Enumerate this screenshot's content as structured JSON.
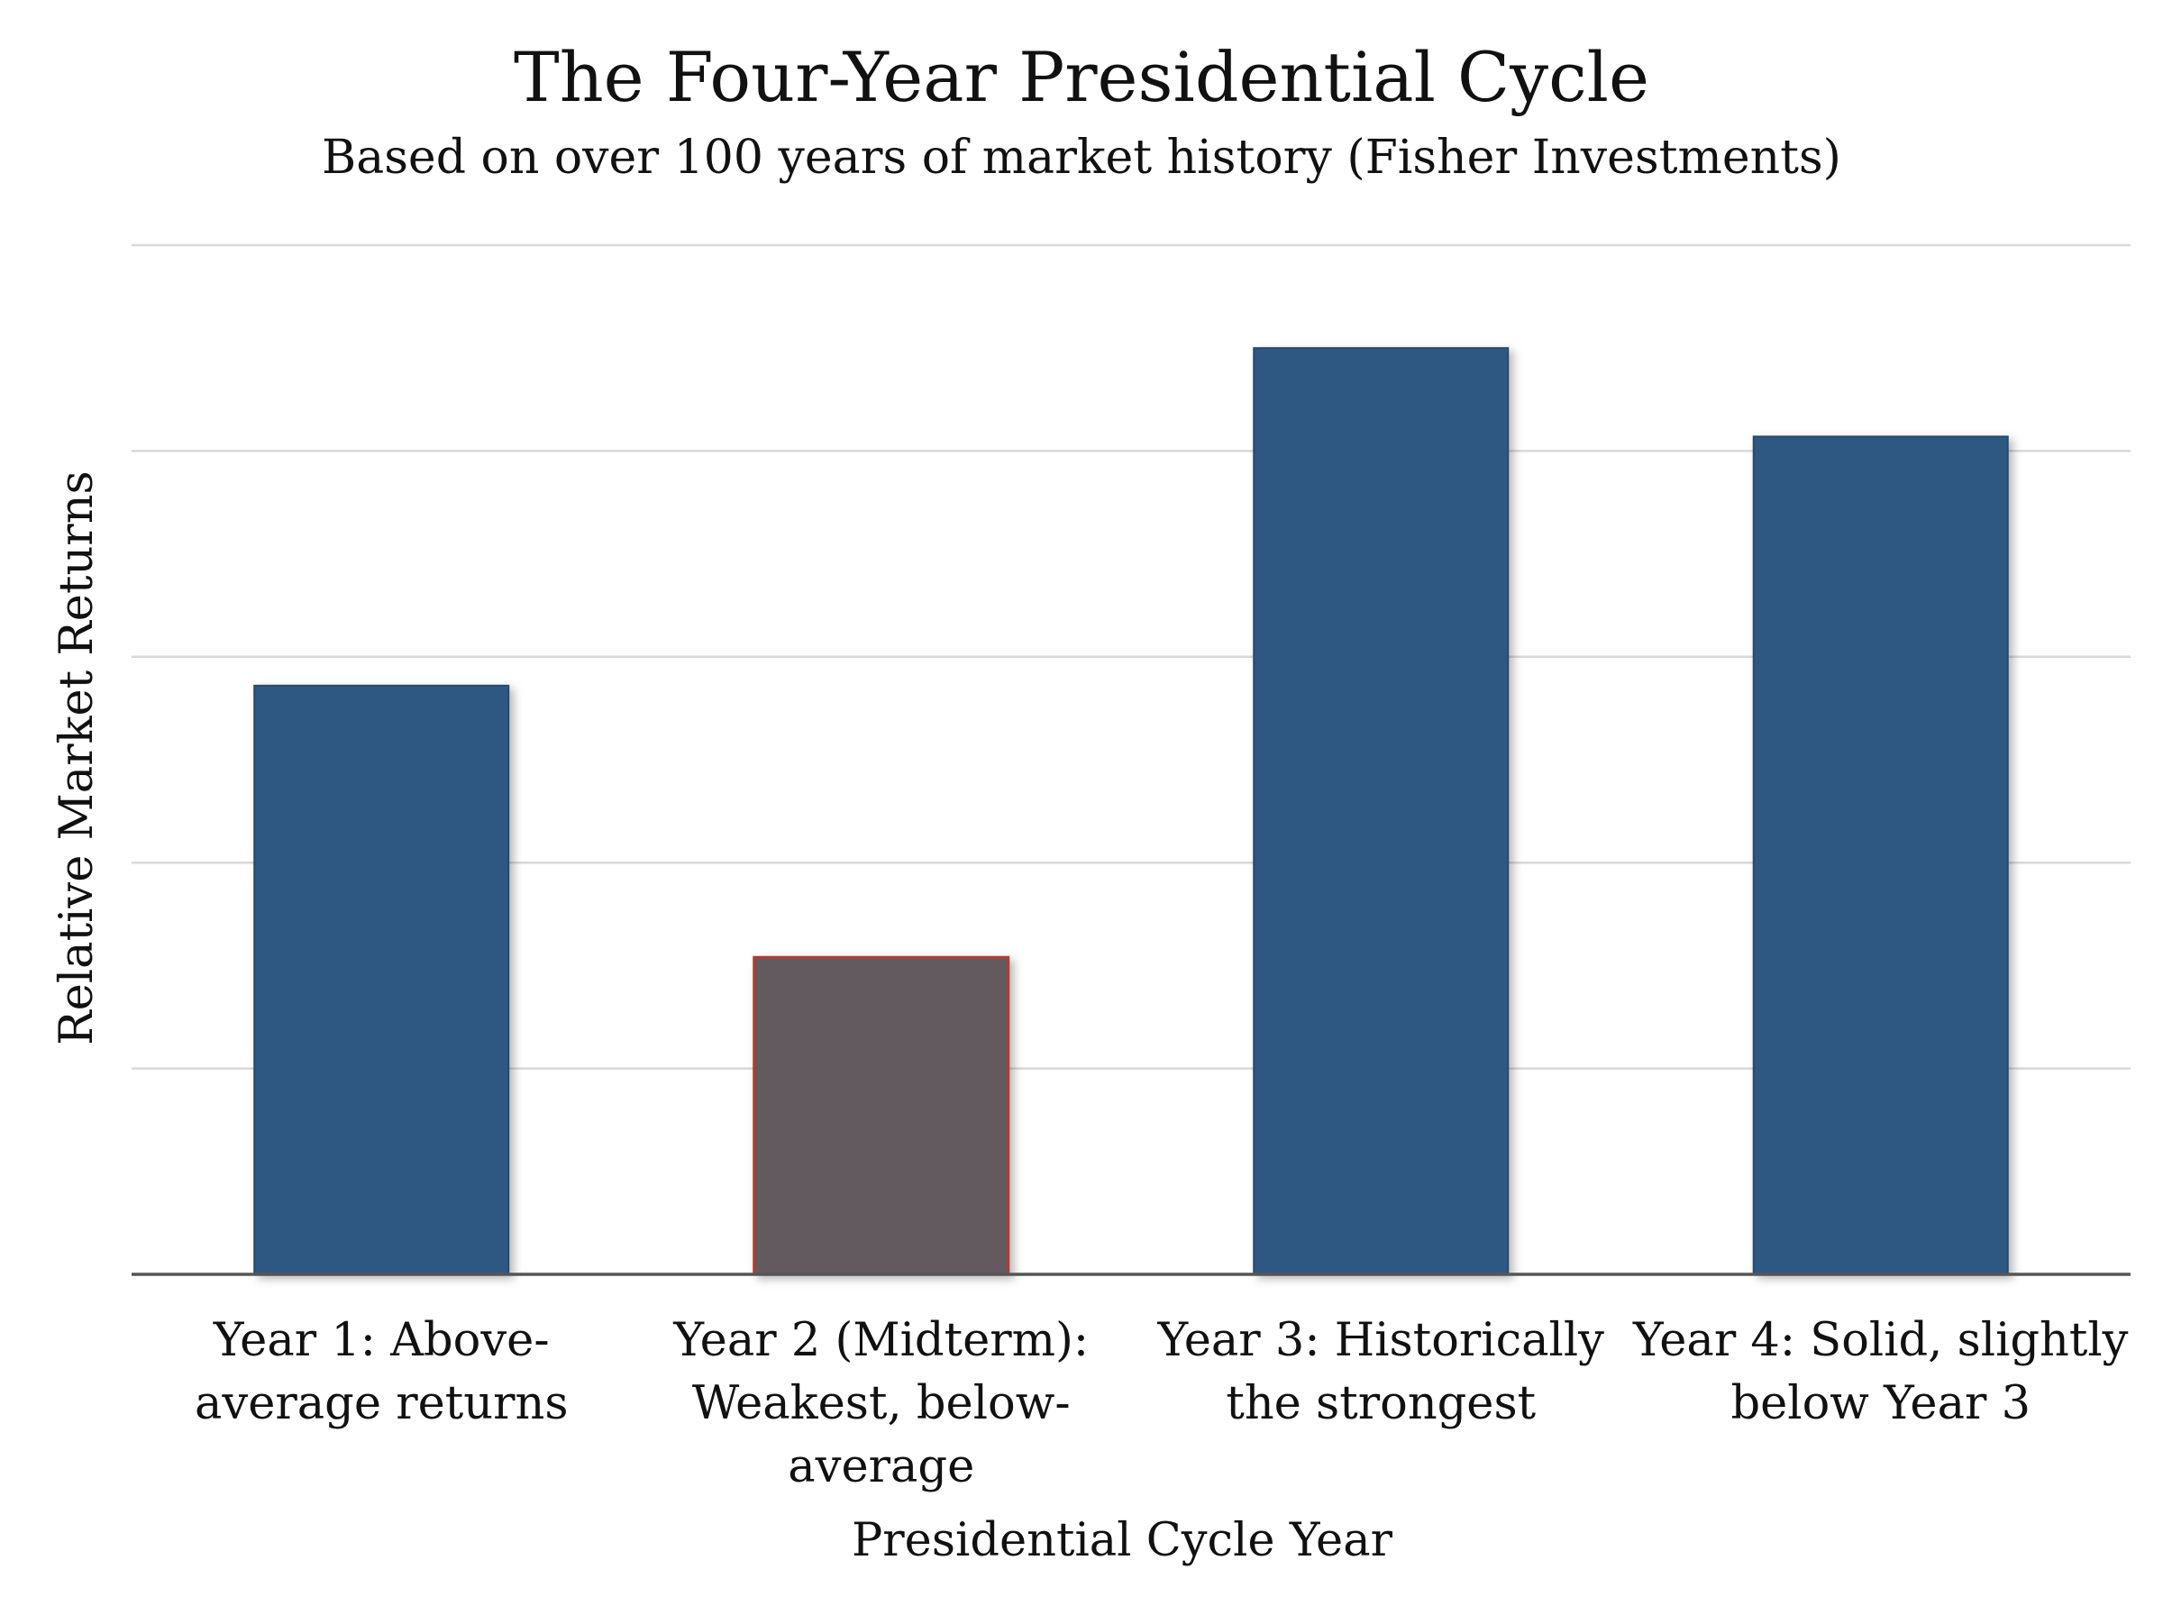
{
  "chart_data": {
    "type": "bar",
    "title": "The Four-Year Presidential Cycle",
    "subtitle": "Based on over 100 years of market history (Fisher Investments)",
    "xlabel": "Presidential Cycle Year",
    "ylabel": "Relative Market Returns",
    "categories": [
      [
        "Year 1: Above-",
        "average returns"
      ],
      [
        "Year 2 (Midterm):",
        "Weakest, below-",
        "average"
      ],
      [
        "Year 3: Historically",
        "the strongest"
      ],
      [
        "Year 4: Solid, slightly",
        "below Year 3"
      ]
    ],
    "values": [
      2.86,
      1.54,
      4.5,
      4.07
    ],
    "ylim": [
      0,
      5
    ],
    "grid": true,
    "y_tick_labels_shown": false,
    "colors": [
      "#2f5882",
      "#645a5e",
      "#2f5882",
      "#2f5882"
    ],
    "highlight_outline": "#b03a30",
    "gridline_color": "#d9d9d9",
    "axis_color": "#555555"
  }
}
